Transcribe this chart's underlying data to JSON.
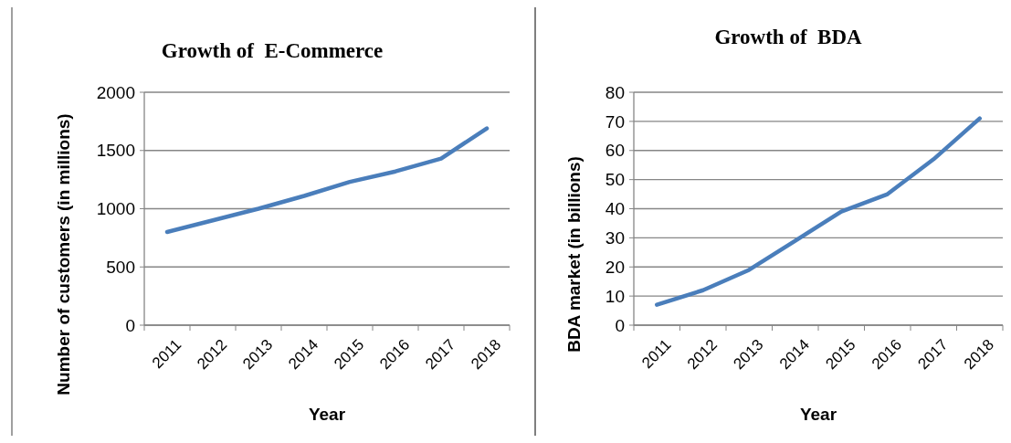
{
  "chart_data": [
    {
      "type": "line",
      "title": "Growth of  E-Commerce",
      "xlabel": "Year",
      "ylabel": "Number of customers (in millions)",
      "categories": [
        "2011",
        "2012",
        "2013",
        "2014",
        "2015",
        "2016",
        "2017",
        "2018"
      ],
      "series": [
        {
          "color": "#4a7ebb",
          "values": [
            800,
            900,
            1000,
            1110,
            1230,
            1320,
            1430,
            1690
          ]
        }
      ],
      "ylim": [
        0,
        2000
      ],
      "yticks": [
        0,
        500,
        1000,
        1500,
        2000
      ],
      "grid": "y"
    },
    {
      "type": "line",
      "title": "Growth of  BDA",
      "xlabel": "Year",
      "ylabel": "BDA market (in billions)",
      "categories": [
        "2011",
        "2012",
        "2013",
        "2014",
        "2015",
        "2016",
        "2017",
        "2018"
      ],
      "series": [
        {
          "color": "#4a7ebb",
          "values": [
            7,
            12,
            19,
            29,
            39,
            45,
            57,
            71
          ]
        }
      ],
      "ylim": [
        0,
        80
      ],
      "yticks": [
        0,
        10,
        20,
        30,
        40,
        50,
        60,
        70,
        80
      ],
      "grid": "y"
    }
  ]
}
